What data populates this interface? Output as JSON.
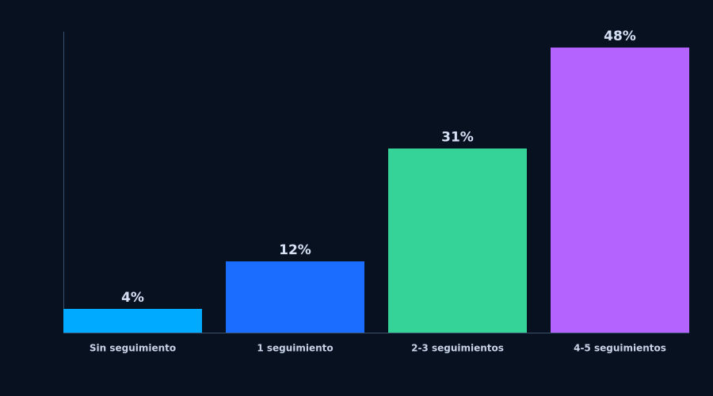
{
  "chart_data": {
    "type": "bar",
    "categories": [
      "Sin seguimiento",
      "1 seguimiento",
      "2-3 seguimientos",
      "4-5 seguimientos"
    ],
    "values": [
      4,
      12,
      31,
      48
    ],
    "value_labels": [
      "4%",
      "12%",
      "31%",
      "48%"
    ],
    "colors": [
      "#00aaff",
      "#1a6dff",
      "#36d399",
      "#b463ff"
    ],
    "ylim": [
      0,
      50.67
    ]
  }
}
